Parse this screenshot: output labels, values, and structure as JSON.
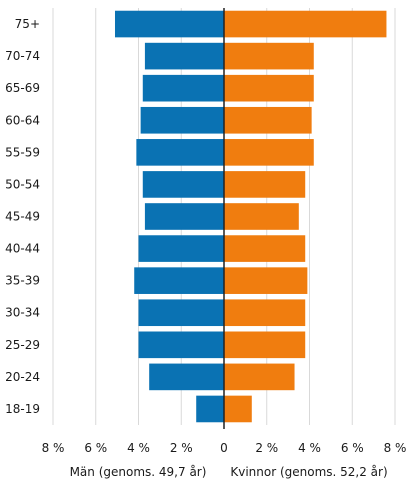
{
  "chart_data": {
    "type": "bar",
    "orientation": "horizontal",
    "layout": "population-pyramid",
    "categories": [
      "75+",
      "70-74",
      "65-69",
      "60-64",
      "55-59",
      "50-54",
      "45-49",
      "40-44",
      "35-39",
      "30-34",
      "25-29",
      "20-24",
      "18-19"
    ],
    "series": [
      {
        "name": "Män (genoms. 49,7 år)",
        "side": "left",
        "color": "#0a72b3",
        "values": [
          5.1,
          3.7,
          3.8,
          3.9,
          4.1,
          3.8,
          3.7,
          4.0,
          4.2,
          4.0,
          4.0,
          3.5,
          1.3
        ]
      },
      {
        "name": "Kvinnor (genoms. 52,2 år)",
        "side": "right",
        "color": "#f07d0f",
        "values": [
          7.6,
          4.2,
          4.2,
          4.1,
          4.2,
          3.8,
          3.5,
          3.8,
          3.9,
          3.8,
          3.8,
          3.3,
          1.3
        ]
      }
    ],
    "xlim": [
      -8,
      8
    ],
    "xticks": [
      -8,
      -6,
      -4,
      -2,
      0,
      2,
      4,
      6,
      8
    ],
    "xtick_labels": [
      "8 %",
      "6 %",
      "4 %",
      "2 %",
      "0",
      "2 %",
      "4 %",
      "6 %",
      "8 %"
    ],
    "grid": "vertical",
    "zero_line_color": "#222222",
    "grid_color": "#d9d9d9"
  }
}
